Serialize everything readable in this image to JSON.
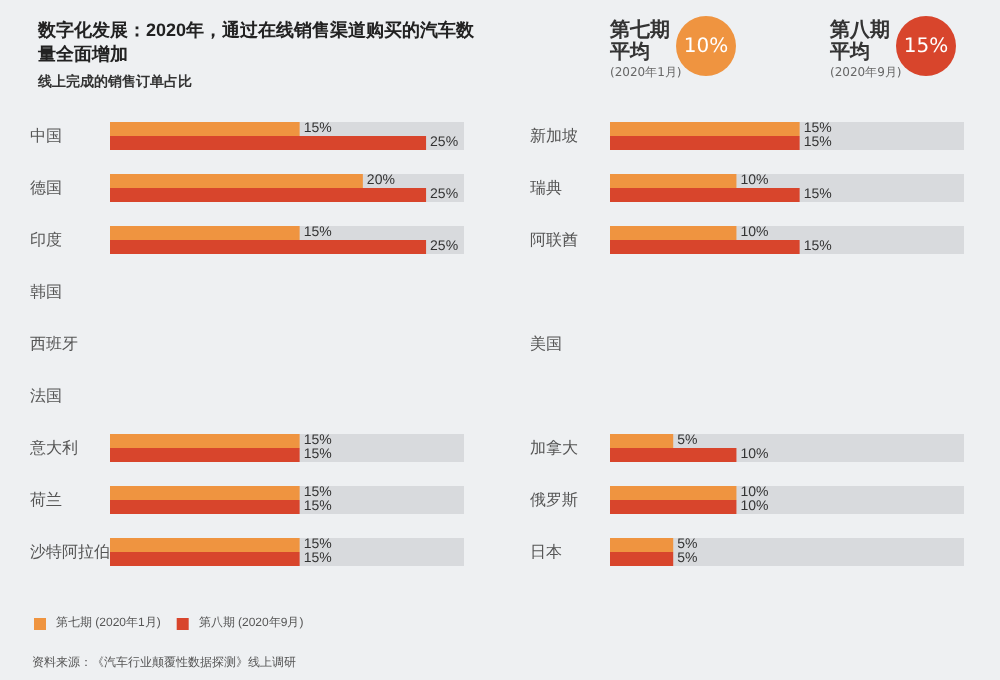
{
  "chart_data": [
    {
      "type": "bar",
      "orientation": "horizontal",
      "title": "数字化发展：2020年，通过在线销售渠道购买的汽车数量全面增加",
      "subtitle": "线上完成的销售订单占比",
      "categories": [
        "中国",
        "德国",
        "印度",
        "韩国",
        "西班牙",
        "法国",
        "意大利",
        "荷兰",
        "沙特阿拉伯"
      ],
      "series": [
        {
          "name": "第七期 (2020年1月)",
          "color": "#ef9440",
          "values": [
            15,
            20,
            15,
            null,
            null,
            null,
            15,
            15,
            15
          ],
          "value_labels": [
            "15%",
            "20%",
            "15%",
            null,
            null,
            null,
            "15%",
            "15%",
            "15%"
          ]
        },
        {
          "name": "第八期 (2020年9月)",
          "color": "#d8452c",
          "values": [
            25,
            25,
            25,
            null,
            null,
            null,
            15,
            15,
            15
          ],
          "value_labels": [
            "25%",
            "25%",
            "25%",
            null,
            null,
            null,
            "15%",
            "15%",
            "15%"
          ]
        }
      ],
      "xlim": [
        0,
        28
      ],
      "tick_labels": "y",
      "legend": "bottom left",
      "grid": false,
      "annotations": [
        "资料来源：《汽车行业颠覆性数据探测》线上调研"
      ]
    },
    {
      "type": "bar",
      "orientation": "horizontal",
      "categories": [
        "新加坡",
        "瑞典",
        "阿联酋",
        null,
        "美国",
        null,
        "加拿大",
        "俄罗斯",
        "日本"
      ],
      "series": [
        {
          "color": "#ef9440",
          "values": [
            15,
            10,
            10,
            null,
            null,
            null,
            5,
            10,
            5
          ],
          "value_labels": [
            "15%",
            "10%",
            "10%",
            null,
            null,
            null,
            "5%",
            "10%",
            "5%"
          ]
        },
        {
          "color": "#d8452c",
          "values": [
            15,
            15,
            15,
            null,
            null,
            null,
            10,
            10,
            5
          ],
          "value_labels": [
            "15%",
            "15%",
            "15%",
            null,
            null,
            null,
            "10%",
            "10%",
            "5%"
          ]
        }
      ],
      "xlim": [
        0,
        28
      ],
      "tick_labels": "y",
      "legend": false,
      "grid": false,
      "annotations": [
        "第七期平均",
        "(2020年1月)",
        "10%",
        "第八期平均",
        "(2020年9月)",
        "15%"
      ]
    }
  ]
}
